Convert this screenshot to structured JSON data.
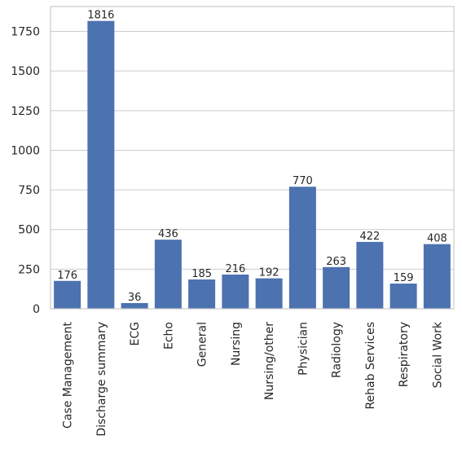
{
  "chart_data": {
    "type": "bar",
    "categories": [
      "Case Management",
      "Discharge summary",
      "ECG",
      "Echo",
      "General",
      "Nursing",
      "Nursing/other",
      "Physician",
      "Radiology",
      "Rehab Services",
      "Respiratory",
      "Social Work"
    ],
    "values": [
      176,
      1816,
      36,
      436,
      185,
      216,
      192,
      770,
      263,
      422,
      159,
      408
    ],
    "value_labels": [
      "176",
      "1816",
      "36",
      "436",
      "185",
      "216",
      "192",
      "770",
      "263",
      "422",
      "159",
      "408"
    ],
    "title": "",
    "xlabel": "",
    "ylabel": "",
    "ylim": [
      0,
      1907
    ],
    "yticks": [
      0,
      250,
      500,
      750,
      1000,
      1250,
      1500,
      1750
    ],
    "ytick_labels": [
      "0",
      "250",
      "500",
      "750",
      "1000",
      "1250",
      "1500",
      "1750"
    ],
    "grid": "horizontal",
    "colors": {
      "bar": "#4c72b0",
      "grid": "#cccccc",
      "spine": "#cccccc",
      "text": "#262626"
    }
  }
}
